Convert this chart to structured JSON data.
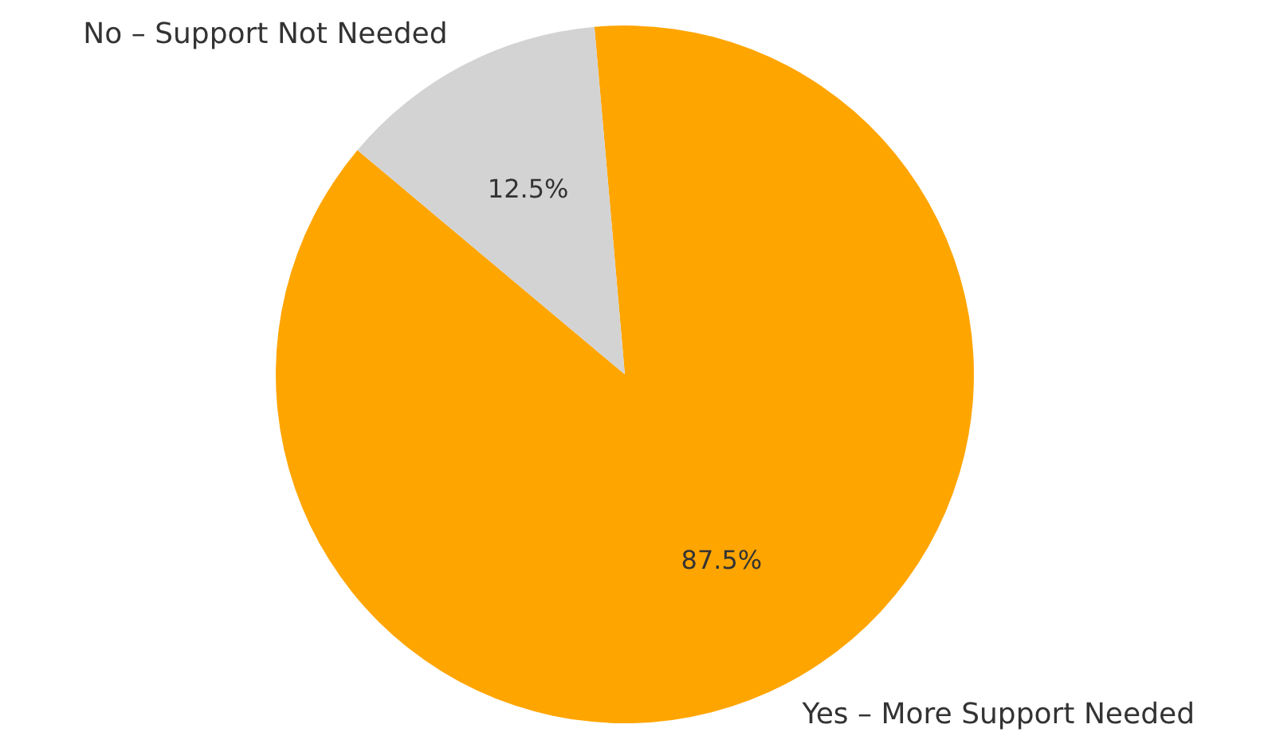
{
  "chart_data": {
    "type": "pie",
    "categories": [
      "Yes – More Support Needed",
      "No – Support Not Needed"
    ],
    "values": [
      87.5,
      12.5
    ],
    "colors": [
      "#ffa500",
      "#d3d3d3"
    ],
    "value_labels": [
      "87.5%",
      "12.5%"
    ],
    "legend": false
  }
}
